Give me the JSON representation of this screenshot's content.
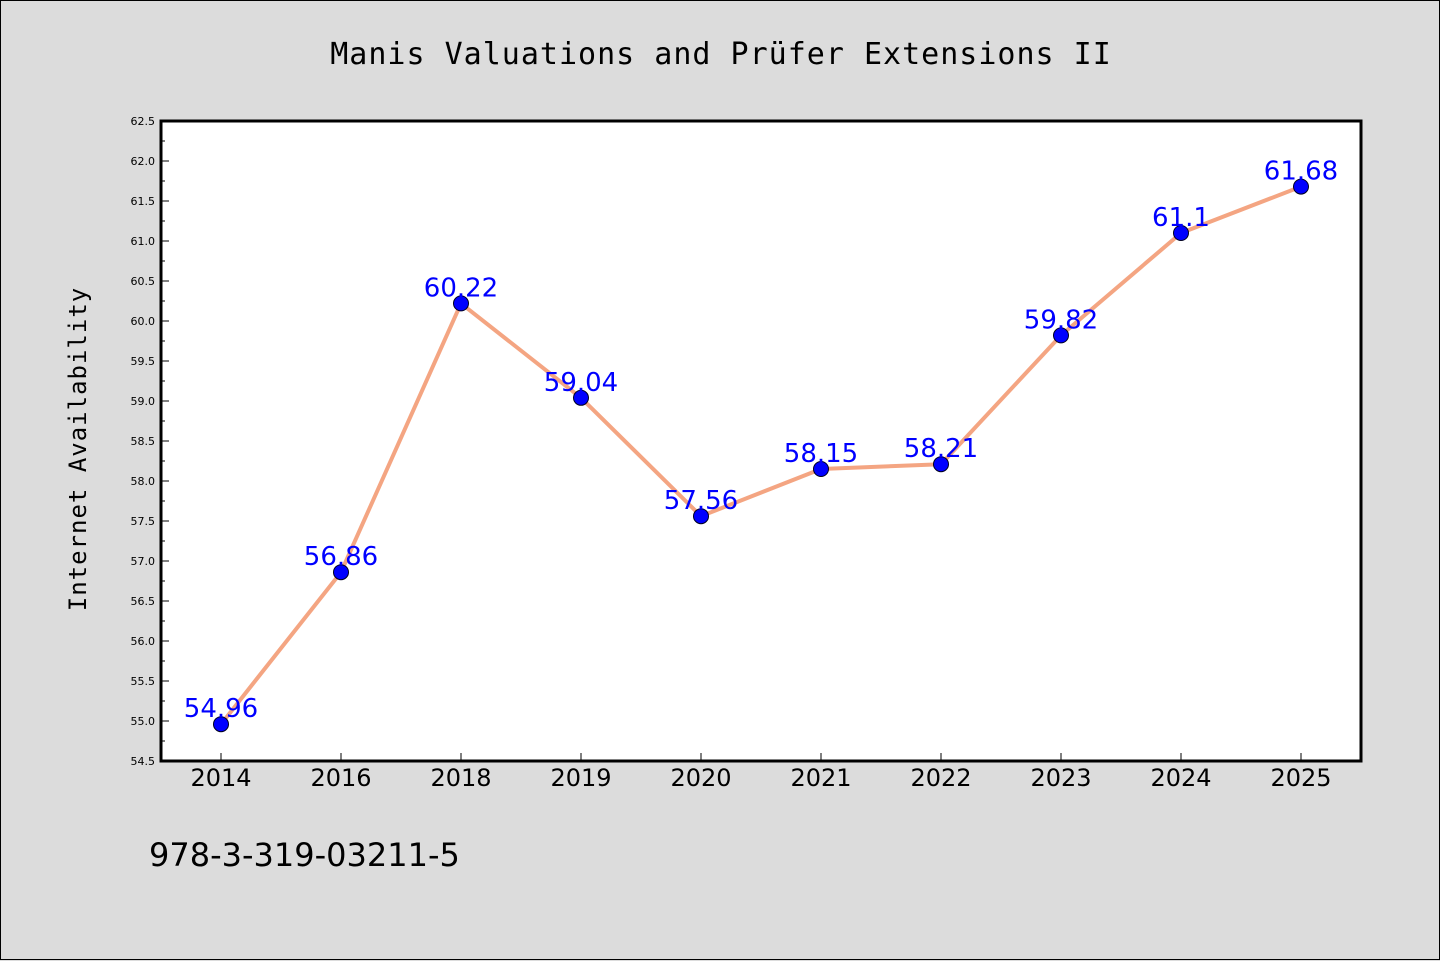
{
  "chart_data": {
    "type": "line",
    "title": "Manis Valuations and Prüfer Extensions II",
    "xlabel": "",
    "ylabel": "Internet Availability",
    "categories": [
      "2014",
      "2016",
      "2018",
      "2019",
      "2020",
      "2021",
      "2022",
      "2023",
      "2024",
      "2025"
    ],
    "series": [
      {
        "values": [
          54.96,
          56.86,
          60.22,
          59.04,
          57.56,
          58.15,
          58.21,
          59.82,
          61.1,
          61.68
        ],
        "labels": [
          "54.96",
          "56.86",
          "60.22",
          "59.04",
          "57.56",
          "58.15",
          "58.21",
          "59.82",
          "61.1",
          "61.68"
        ],
        "line_color": "#f4a582",
        "marker_color": "#0000ff"
      }
    ],
    "ylim": [
      54.5,
      62.5
    ],
    "yticks": [
      "54.5",
      "55.0",
      "55.5",
      "56.0",
      "56.5",
      "57.0",
      "57.5",
      "58.0",
      "58.5",
      "59.0",
      "59.5",
      "60.0",
      "60.5",
      "61.0",
      "61.5",
      "62.0",
      "62.5"
    ],
    "grid": false,
    "legend": "none"
  },
  "footer_text": "978-3-319-03211-5",
  "colors": {
    "background": "#dcdcdc",
    "plot_background": "#ffffff",
    "line": "#f4a582",
    "marker": "#0000ff",
    "data_label": "#0000ff"
  }
}
